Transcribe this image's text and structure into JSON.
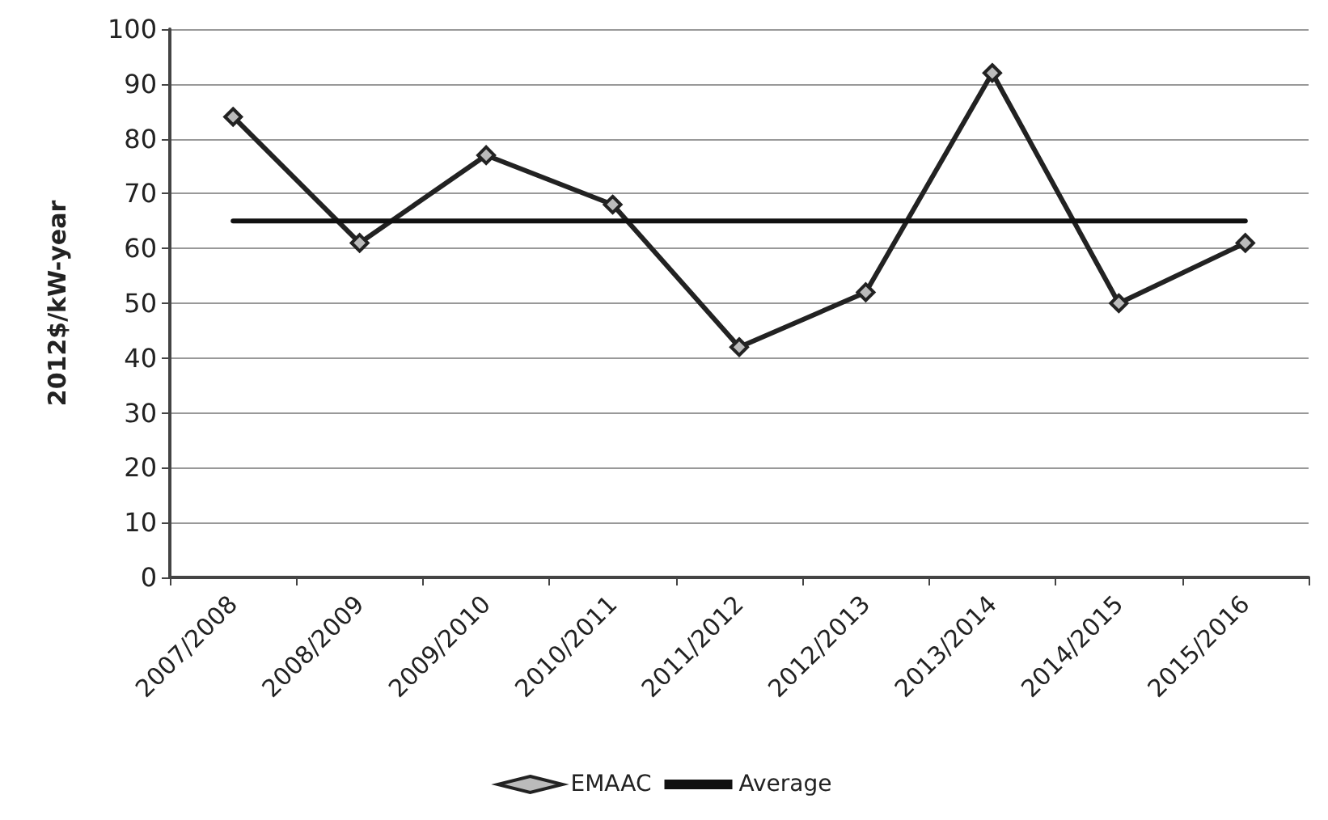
{
  "chart_data": {
    "type": "line",
    "ylabel": "2012$/kW-year",
    "categories": [
      "2007/2008",
      "2008/2009",
      "2009/2010",
      "2010/2011",
      "2011/2012",
      "2012/2013",
      "2013/2014",
      "2014/2015",
      "2015/2016"
    ],
    "series": [
      {
        "name": "EMAAC",
        "color": "#222222",
        "marker": "diamond",
        "values": [
          84,
          61,
          77,
          68,
          42,
          52,
          92,
          50,
          61
        ]
      },
      {
        "name": "Average",
        "color": "#111111",
        "marker": "none",
        "values": [
          65,
          65,
          65,
          65,
          65,
          65,
          65,
          65,
          65
        ]
      }
    ],
    "ylim": [
      0,
      100
    ],
    "yticks": [
      0,
      10,
      20,
      30,
      40,
      50,
      60,
      70,
      80,
      90,
      100
    ],
    "grid": "y",
    "legend": "bottom",
    "line_style": "solid"
  }
}
